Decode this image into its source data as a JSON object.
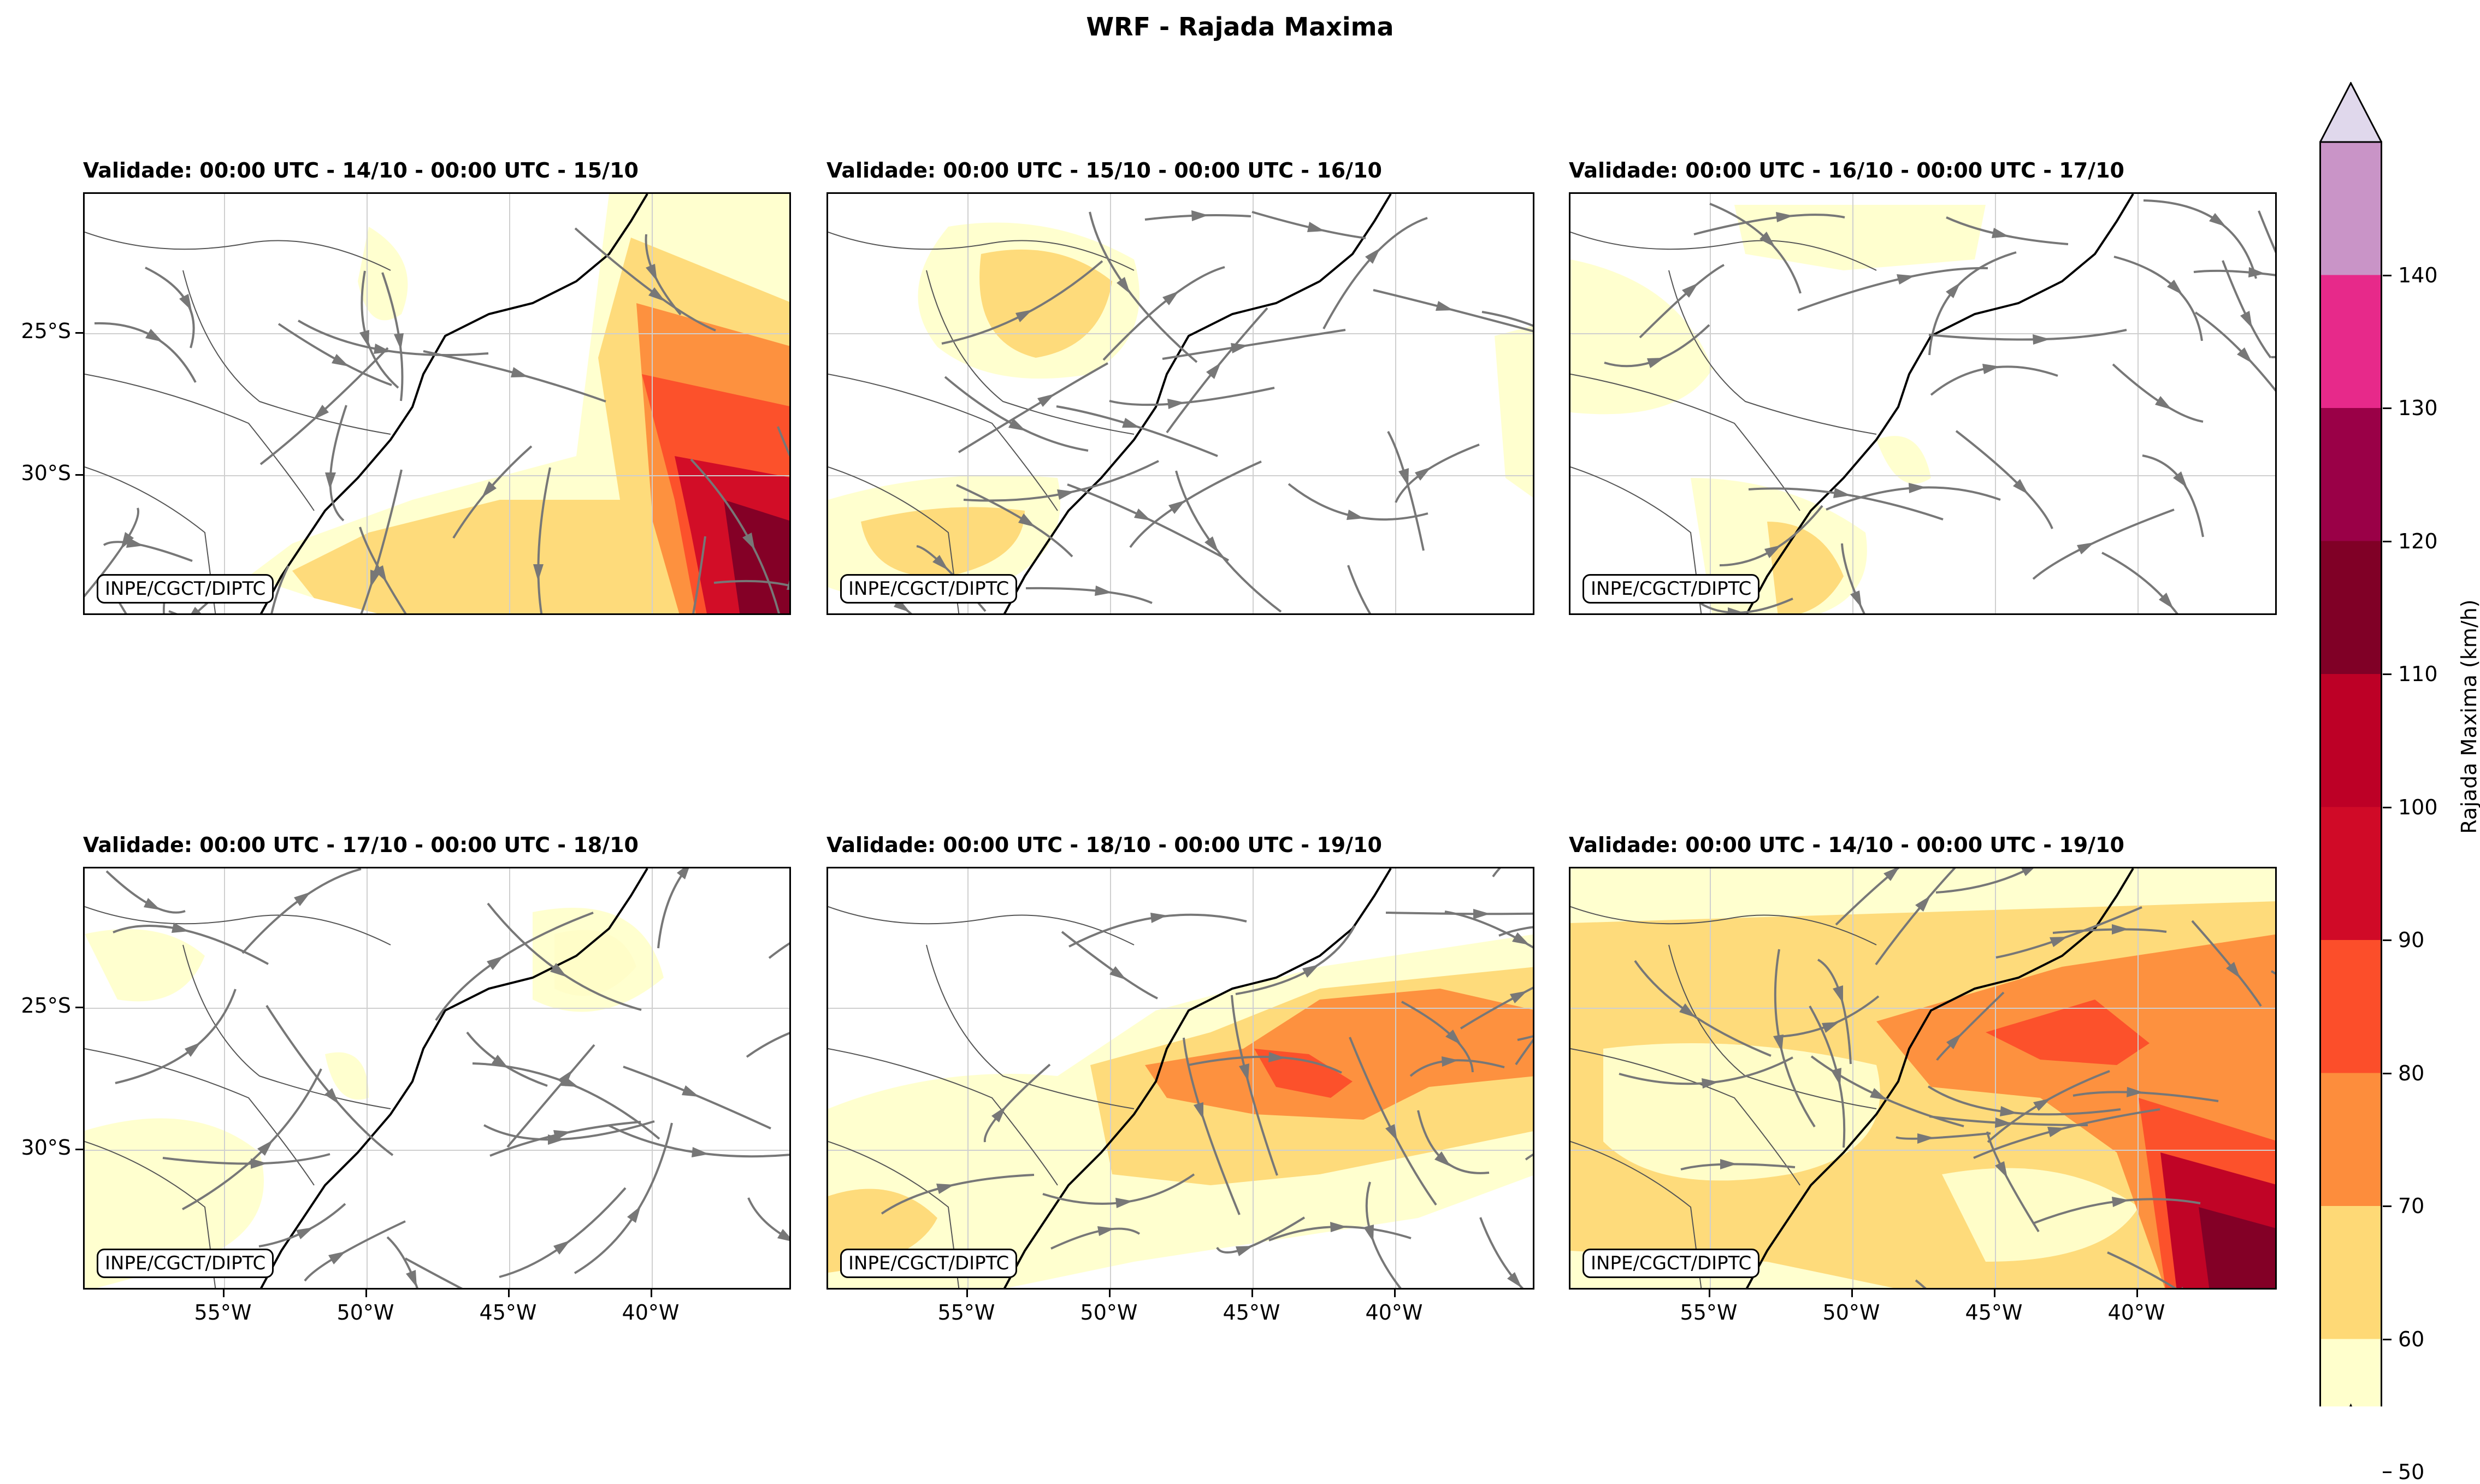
{
  "title": "WRF - Rajada Maxima",
  "credit": "INPE/CGCT/DIPTC",
  "lat_labels": [
    "25°S",
    "30°S"
  ],
  "lon_labels": [
    "55°W",
    "50°W",
    "45°W",
    "40°W"
  ],
  "panels": [
    {
      "title": "Validade: 00:00 UTC - 14/10 - 00:00 UTC - 15/10",
      "pattern": "offshore_storm"
    },
    {
      "title": "Validade: 00:00 UTC - 15/10 - 00:00 UTC - 16/10",
      "pattern": "inland_north"
    },
    {
      "title": "Validade: 00:00 UTC - 16/10 - 00:00 UTC - 17/10",
      "pattern": "coastal_weak"
    },
    {
      "title": "Validade: 00:00 UTC - 17/10 - 00:00 UTC - 18/10",
      "pattern": "scattered"
    },
    {
      "title": "Validade: 00:00 UTC - 18/10 - 00:00 UTC - 19/10",
      "pattern": "offshore_band"
    },
    {
      "title": "Validade: 00:00 UTC - 14/10 - 00:00 UTC - 19/10",
      "pattern": "accumulated"
    }
  ],
  "colorbar": {
    "label": "Rajada Maxima (km/h)",
    "ticks": [
      "50",
      "60",
      "70",
      "80",
      "90",
      "100",
      "110",
      "120",
      "130",
      "140"
    ],
    "colors": [
      "#ffffcc",
      "#fed976",
      "#fd8d3c",
      "#fc4e2a",
      "#d00a27",
      "#bd0026",
      "#800026",
      "#9a0047",
      "#e7298a",
      "#c994c7"
    ],
    "under_color": "#ffffff",
    "over_color": "#e0d8ec"
  }
}
